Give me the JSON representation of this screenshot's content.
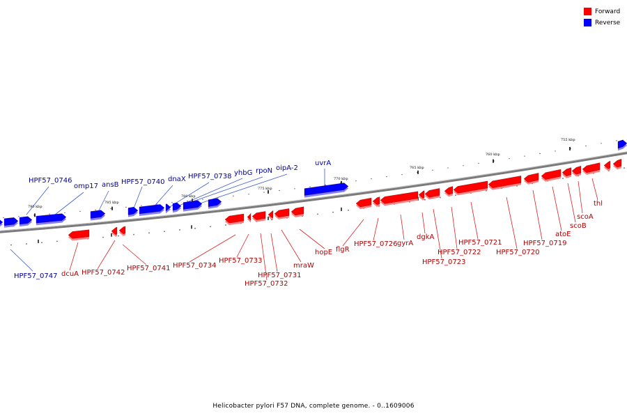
{
  "legend": {
    "forward_label": "Forward",
    "reverse_label": "Reverse",
    "forward_color": "#ff0000",
    "reverse_color": "#0000ff"
  },
  "caption": "Helicobacter pylori F57 DNA, complete genome. - 0..1609006",
  "ticks": [
    "755 kbp",
    "760 kbp",
    "765 kbp",
    "770 kbp",
    "775 kbp",
    "780 kbp",
    "785 kbp",
    "790 kbp"
  ],
  "reverse_genes": [
    "HPF57_0747",
    "HPF57_0746",
    "omp17",
    "ansB",
    "HPF57_0740",
    "dnaX",
    "HPF57_0738",
    "yhbG",
    "rpoN",
    "oipA-2",
    "uvrA"
  ],
  "forward_genes": [
    "dcuA",
    "HPF57_0742",
    "HPF57_0741",
    "HPF57_0734",
    "HPF57_0733",
    "HPF57_0732",
    "HPF57_0731",
    "mraW",
    "hopE",
    "flgR",
    "HPF57_0726",
    "gyrA",
    "dgkA",
    "HPF57_0723",
    "HPF57_0722",
    "HPF57_0721",
    "HPF57_0720",
    "HPF57_0719",
    "atoE",
    "scoB",
    "scoA",
    "thl"
  ]
}
